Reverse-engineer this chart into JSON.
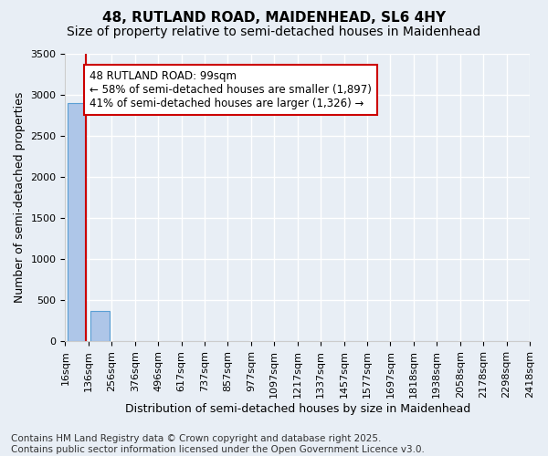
{
  "title1": "48, RUTLAND ROAD, MAIDENHEAD, SL6 4HY",
  "title2": "Size of property relative to semi-detached houses in Maidenhead",
  "xlabel": "Distribution of semi-detached houses by size in Maidenhead",
  "ylabel": "Number of semi-detached properties",
  "footnote": "Contains HM Land Registry data © Crown copyright and database right 2025.\nContains public sector information licensed under the Open Government Licence v3.0.",
  "bin_labels": [
    "16sqm",
    "136sqm",
    "256sqm",
    "376sqm",
    "496sqm",
    "617sqm",
    "737sqm",
    "857sqm",
    "977sqm",
    "1097sqm",
    "1217sqm",
    "1337sqm",
    "1457sqm",
    "1577sqm",
    "1697sqm",
    "1818sqm",
    "1938sqm",
    "2058sqm",
    "2178sqm",
    "2298sqm",
    "2418sqm"
  ],
  "bar_values": [
    2900,
    370,
    0,
    0,
    0,
    0,
    0,
    0,
    0,
    0,
    0,
    0,
    0,
    0,
    0,
    0,
    0,
    0,
    0,
    0
  ],
  "bar_color": "#aec6e8",
  "bar_edge_color": "#5a9fd4",
  "annotation_text": "48 RUTLAND ROAD: 99sqm\n← 58% of semi-detached houses are smaller (1,897)\n41% of semi-detached houses are larger (1,326) →",
  "annotation_box_color": "#ffffff",
  "annotation_box_edge_color": "#cc0000",
  "vline_color": "#cc0000",
  "ylim": [
    0,
    3500
  ],
  "yticks": [
    0,
    500,
    1000,
    1500,
    2000,
    2500,
    3000,
    3500
  ],
  "bg_color": "#e8eef5",
  "plot_bg_color": "#e8eef5",
  "grid_color": "#ffffff",
  "title1_fontsize": 11,
  "title2_fontsize": 10,
  "axis_label_fontsize": 9,
  "tick_fontsize": 8,
  "annotation_fontsize": 8.5,
  "footnote_fontsize": 7.5
}
